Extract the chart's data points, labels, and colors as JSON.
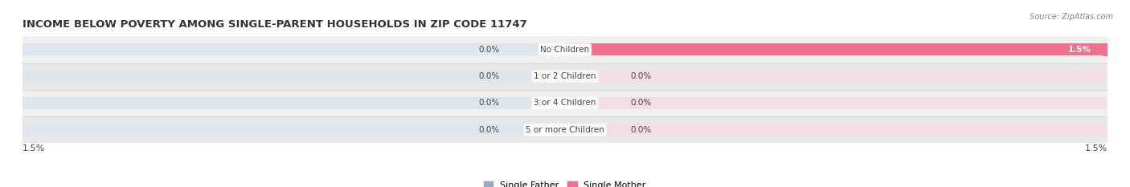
{
  "title": "INCOME BELOW POVERTY AMONG SINGLE-PARENT HOUSEHOLDS IN ZIP CODE 11747",
  "source": "Source: ZipAtlas.com",
  "categories": [
    "No Children",
    "1 or 2 Children",
    "3 or 4 Children",
    "5 or more Children"
  ],
  "single_father": [
    0.0,
    0.0,
    0.0,
    0.0
  ],
  "single_mother": [
    1.5,
    0.0,
    0.0,
    0.0
  ],
  "father_color": "#8ab0cc",
  "mother_color": "#f07090",
  "bar_bg_left_color": "#dde6ee",
  "bar_bg_right_color": "#f5dde5",
  "row_colors": [
    "#f0f0f0",
    "#e8e8e8",
    "#f0f0f0",
    "#e8e8e8"
  ],
  "label_color": "#444444",
  "title_color": "#333333",
  "max_val": 1.5,
  "x_axis_val": "1.5%",
  "background_color": "#ffffff",
  "legend_father": "Single Father",
  "legend_mother": "Single Mother",
  "bar_height": 0.45,
  "row_sep_color": "#cccccc"
}
